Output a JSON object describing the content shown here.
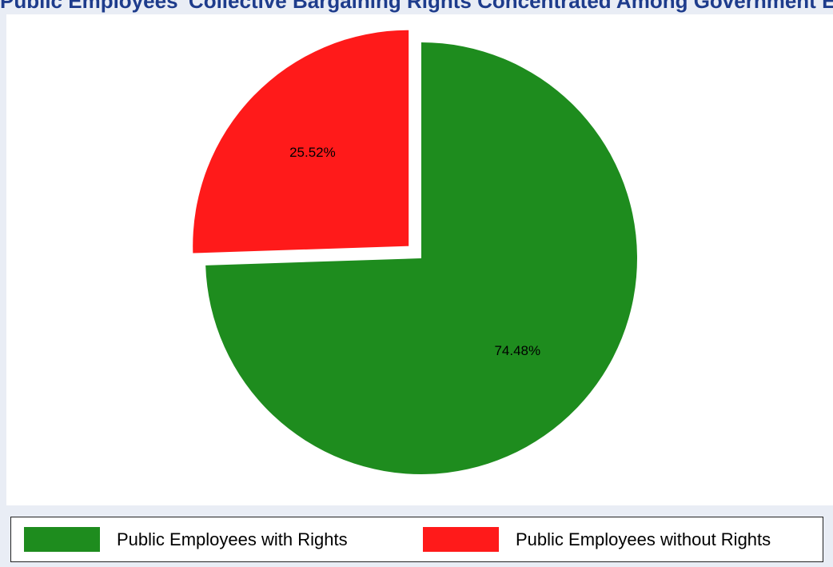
{
  "chart_data": {
    "type": "pie",
    "title": "Public Employees' Collective Bargaining Rights Concentrated Among Government Employees",
    "slices": [
      {
        "label": "Public Employees with Rights",
        "value": 74.48,
        "value_label": "74.48%",
        "color": "#1e8c1e",
        "exploded": false
      },
      {
        "label": "Public Employees without Rights",
        "value": 25.52,
        "value_label": "25.52%",
        "color": "#ff1a1a",
        "exploded": true
      }
    ],
    "legend_position": "bottom"
  },
  "colors": {
    "background": "#e9edf5",
    "plot_background": "#ffffff",
    "title": "#1e3c8c"
  }
}
